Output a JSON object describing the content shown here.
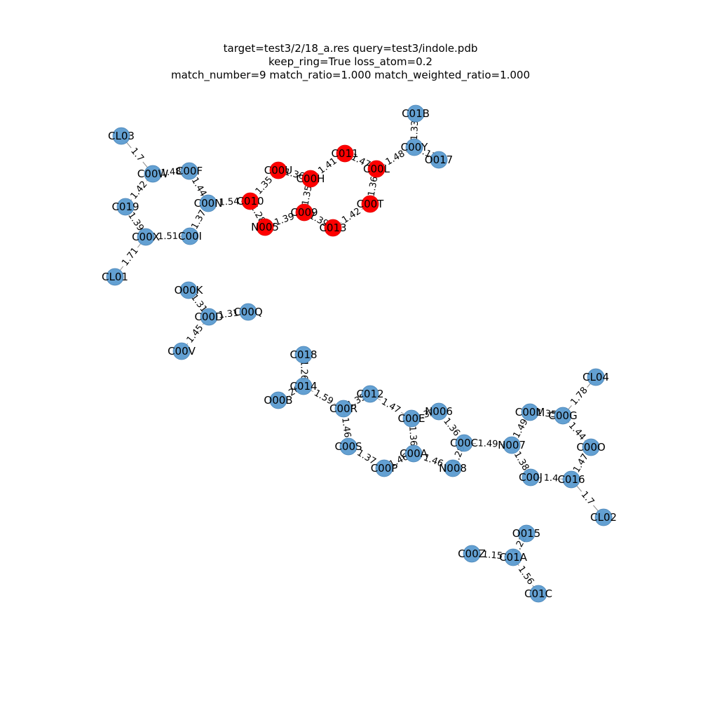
{
  "title": {
    "line1": "target=test3/2/18_a.res query=test3/indole.pdb",
    "line2": "keep_ring=True loss_atom=0.2",
    "line3": "match_number=9 match_ratio=1.000 match_weighted_ratio=1.000"
  },
  "colors": {
    "matched": "#ff0000",
    "unmatched": "#5b9bd0"
  },
  "nodes": [
    {
      "id": "CL03",
      "matched": false
    },
    {
      "id": "C00W",
      "matched": false
    },
    {
      "id": "C00F",
      "matched": false
    },
    {
      "id": "C019",
      "matched": false
    },
    {
      "id": "C00N",
      "matched": false
    },
    {
      "id": "C00X",
      "matched": false
    },
    {
      "id": "C00I",
      "matched": false
    },
    {
      "id": "CL01",
      "matched": false
    },
    {
      "id": "C010",
      "matched": true
    },
    {
      "id": "C00U",
      "matched": true
    },
    {
      "id": "C00H",
      "matched": true
    },
    {
      "id": "C011",
      "matched": true
    },
    {
      "id": "C00L",
      "matched": true
    },
    {
      "id": "C00T",
      "matched": true
    },
    {
      "id": "C009",
      "matched": true
    },
    {
      "id": "N005",
      "matched": true
    },
    {
      "id": "C013",
      "matched": true
    },
    {
      "id": "C01B",
      "matched": false
    },
    {
      "id": "C00Y",
      "matched": false
    },
    {
      "id": "O017",
      "matched": false
    },
    {
      "id": "O00K",
      "matched": false
    },
    {
      "id": "C00D",
      "matched": false
    },
    {
      "id": "C00Q",
      "matched": false
    },
    {
      "id": "C00V",
      "matched": false
    },
    {
      "id": "C018",
      "matched": false
    },
    {
      "id": "C014",
      "matched": false
    },
    {
      "id": "O00B",
      "matched": false
    },
    {
      "id": "C012",
      "matched": false
    },
    {
      "id": "C00R",
      "matched": false
    },
    {
      "id": "C00E",
      "matched": false
    },
    {
      "id": "N006",
      "matched": false
    },
    {
      "id": "C00S",
      "matched": false
    },
    {
      "id": "C00A",
      "matched": false
    },
    {
      "id": "C00P",
      "matched": false
    },
    {
      "id": "N008",
      "matched": false
    },
    {
      "id": "C00C",
      "matched": false
    },
    {
      "id": "N007",
      "matched": false
    },
    {
      "id": "C00M",
      "matched": false
    },
    {
      "id": "C00G",
      "matched": false
    },
    {
      "id": "CL04",
      "matched": false
    },
    {
      "id": "C00O",
      "matched": false
    },
    {
      "id": "C00J",
      "matched": false
    },
    {
      "id": "C016",
      "matched": false
    },
    {
      "id": "CL02",
      "matched": false
    },
    {
      "id": "O015",
      "matched": false
    },
    {
      "id": "C00Z",
      "matched": false
    },
    {
      "id": "C01A",
      "matched": false
    },
    {
      "id": "C01C",
      "matched": false
    }
  ],
  "edges": [
    {
      "a": "CL03",
      "b": "C00W",
      "label": "1.7"
    },
    {
      "a": "C00W",
      "b": "C00F",
      "label": "1.48"
    },
    {
      "a": "C00W",
      "b": "C019",
      "label": "1.42"
    },
    {
      "a": "C00F",
      "b": "C00N",
      "label": "1.44"
    },
    {
      "a": "C019",
      "b": "C00X",
      "label": "1.39"
    },
    {
      "a": "C00N",
      "b": "C00I",
      "label": "1.37"
    },
    {
      "a": "C00X",
      "b": "C00I",
      "label": "1.51"
    },
    {
      "a": "C00X",
      "b": "CL01",
      "label": "1.71"
    },
    {
      "a": "C00N",
      "b": "C010",
      "label": "1.54"
    },
    {
      "a": "C010",
      "b": "C00U",
      "label": "1.35"
    },
    {
      "a": "C010",
      "b": "N005",
      "label": "1.28"
    },
    {
      "a": "C00U",
      "b": "C00H",
      "label": "1.36"
    },
    {
      "a": "C00H",
      "b": "C011",
      "label": "1.41"
    },
    {
      "a": "C00H",
      "b": "C009",
      "label": "1.35"
    },
    {
      "a": "C011",
      "b": "C00L",
      "label": "1.47"
    },
    {
      "a": "C00L",
      "b": "C00T",
      "label": "1.36"
    },
    {
      "a": "C00L",
      "b": "C00Y",
      "label": "1.48"
    },
    {
      "a": "C00T",
      "b": "C013",
      "label": "1.42"
    },
    {
      "a": "C009",
      "b": "C013",
      "label": "1.39"
    },
    {
      "a": "N005",
      "b": "C009",
      "label": "1.39"
    },
    {
      "a": "C01B",
      "b": "C00Y",
      "label": "1.33"
    },
    {
      "a": "C00Y",
      "b": "O017",
      "label": "1.17"
    },
    {
      "a": "O00K",
      "b": "C00D",
      "label": "1.31"
    },
    {
      "a": "C00D",
      "b": "C00Q",
      "label": "1.31"
    },
    {
      "a": "C00D",
      "b": "C00V",
      "label": "1.45"
    },
    {
      "a": "C018",
      "b": "C014",
      "label": "1.26"
    },
    {
      "a": "C014",
      "b": "O00B",
      "label": "1.26"
    },
    {
      "a": "C014",
      "b": "C00R",
      "label": "1.59"
    },
    {
      "a": "C00R",
      "b": "C012",
      "label": "1.35"
    },
    {
      "a": "C00R",
      "b": "C00S",
      "label": "1.46"
    },
    {
      "a": "C012",
      "b": "C00E",
      "label": "1.47"
    },
    {
      "a": "C00E",
      "b": "N006",
      "label": "1.32"
    },
    {
      "a": "C00E",
      "b": "C00A",
      "label": "1.36"
    },
    {
      "a": "N006",
      "b": "C00C",
      "label": "1.36"
    },
    {
      "a": "C00S",
      "b": "C00P",
      "label": "1.37"
    },
    {
      "a": "C00P",
      "b": "C00A",
      "label": "1.46"
    },
    {
      "a": "C00A",
      "b": "N008",
      "label": "1.46"
    },
    {
      "a": "N008",
      "b": "C00C",
      "label": "1.28"
    },
    {
      "a": "C00C",
      "b": "N007",
      "label": "1.49"
    },
    {
      "a": "N007",
      "b": "C00M",
      "label": "1.49"
    },
    {
      "a": "N007",
      "b": "C00J",
      "label": "1.38"
    },
    {
      "a": "C00M",
      "b": "C00G",
      "label": "1.35"
    },
    {
      "a": "C00G",
      "b": "CL04",
      "label": "1.78"
    },
    {
      "a": "C00G",
      "b": "C00O",
      "label": "1.44"
    },
    {
      "a": "C00O",
      "b": "C016",
      "label": "1.47"
    },
    {
      "a": "C00J",
      "b": "C016",
      "label": "1.4"
    },
    {
      "a": "C016",
      "b": "CL02",
      "label": "1.7"
    },
    {
      "a": "O015",
      "b": "C01A",
      "label": "1.22"
    },
    {
      "a": "C00Z",
      "b": "C01A",
      "label": "1.15"
    },
    {
      "a": "C01A",
      "b": "C01C",
      "label": "1.56"
    }
  ]
}
